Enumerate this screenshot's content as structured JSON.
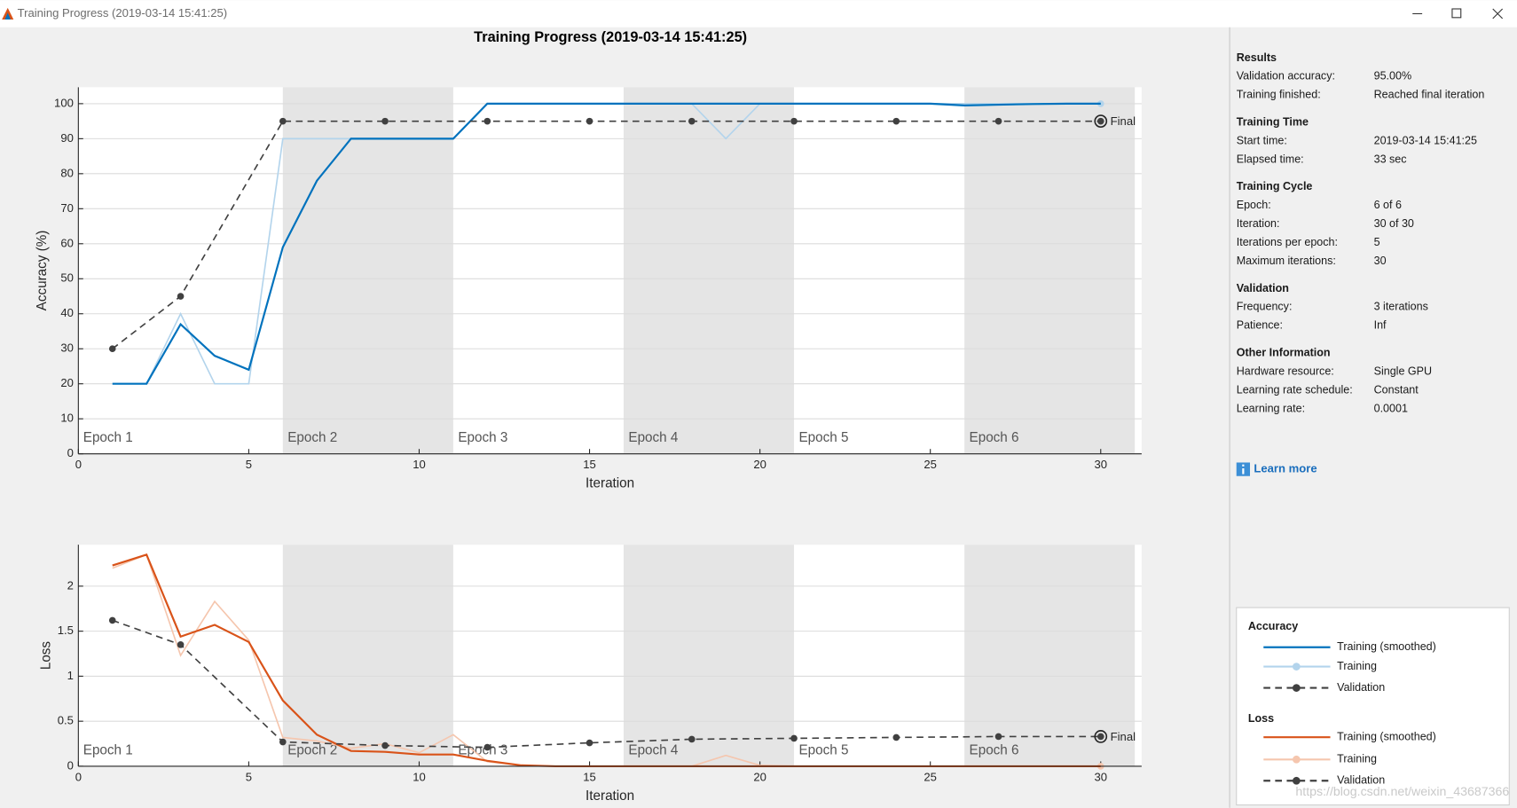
{
  "window": {
    "title": "Training Progress (2019-03-14 15:41:25)"
  },
  "heading": "Training Progress (2019-03-14 15:41:25)",
  "chart_data": [
    {
      "type": "line",
      "legend_title": "Accuracy",
      "ylabel": "Accuracy (%)",
      "xlabel": "Iteration",
      "xlim": [
        0,
        31.2
      ],
      "ylim": [
        0,
        104.7
      ],
      "xticks": [
        0,
        5,
        10,
        15,
        20,
        25,
        30
      ],
      "yticks": [
        0,
        10,
        20,
        30,
        40,
        50,
        60,
        70,
        80,
        90,
        100
      ],
      "grid": true,
      "final_label": "Final",
      "epochs": [
        {
          "label": "Epoch 1",
          "start": 0,
          "end": 6
        },
        {
          "label": "Epoch 2",
          "start": 6,
          "end": 11
        },
        {
          "label": "Epoch 3",
          "start": 11,
          "end": 16
        },
        {
          "label": "Epoch 4",
          "start": 16,
          "end": 21
        },
        {
          "label": "Epoch 5",
          "start": 21,
          "end": 26
        },
        {
          "label": "Epoch 6",
          "start": 26,
          "end": 31
        }
      ],
      "series": [
        {
          "name": "Training (smoothed)",
          "color": "#0072bd",
          "style": "solid",
          "x": [
            1,
            2,
            3,
            4,
            5,
            6,
            7,
            8,
            9,
            10,
            11,
            12,
            13,
            14,
            15,
            16,
            17,
            18,
            19,
            20,
            21,
            22,
            23,
            24,
            25,
            26,
            27,
            28,
            29,
            30
          ],
          "values": [
            20,
            20,
            37,
            28,
            24,
            59,
            78,
            90,
            90,
            90,
            90,
            100,
            100,
            100,
            100,
            100,
            100,
            100,
            100,
            100,
            100,
            100,
            100,
            100,
            100,
            99.5,
            99.7,
            99.9,
            100,
            100
          ]
        },
        {
          "name": "Training",
          "color": "#b3d4ec",
          "style": "faint",
          "x": [
            1,
            2,
            3,
            4,
            5,
            6,
            7,
            8,
            9,
            10,
            11,
            12,
            13,
            14,
            15,
            16,
            17,
            18,
            19,
            20,
            21,
            22,
            23,
            24,
            25,
            26,
            27,
            28,
            29,
            30
          ],
          "values": [
            20,
            20,
            40,
            20,
            20,
            90,
            90,
            90,
            90,
            90,
            90,
            100,
            100,
            100,
            100,
            100,
            100,
            100,
            90,
            100,
            100,
            100,
            100,
            100,
            100,
            100,
            100,
            100,
            100,
            100
          ]
        },
        {
          "name": "Validation",
          "color": "#404040",
          "style": "dashed",
          "x": [
            1,
            3,
            6,
            9,
            12,
            15,
            18,
            21,
            24,
            27,
            30
          ],
          "values": [
            30,
            45,
            95,
            95,
            95,
            95,
            95,
            95,
            95,
            95,
            95
          ]
        }
      ]
    },
    {
      "type": "line",
      "legend_title": "Loss",
      "ylabel": "Loss",
      "xlabel": "Iteration",
      "xlim": [
        0,
        31.2
      ],
      "ylim": [
        0,
        2.46
      ],
      "xticks": [
        0,
        5,
        10,
        15,
        20,
        25,
        30
      ],
      "yticks": [
        0,
        0.5,
        1,
        1.5,
        2
      ],
      "grid": true,
      "final_label": "Final",
      "epochs": [
        {
          "label": "Epoch 1",
          "start": 0,
          "end": 6
        },
        {
          "label": "Epoch 2",
          "start": 6,
          "end": 11
        },
        {
          "label": "Epoch 3",
          "start": 11,
          "end": 16
        },
        {
          "label": "Epoch 4",
          "start": 16,
          "end": 21
        },
        {
          "label": "Epoch 5",
          "start": 21,
          "end": 26
        },
        {
          "label": "Epoch 6",
          "start": 26,
          "end": 31
        }
      ],
      "series": [
        {
          "name": "Training (smoothed)",
          "color": "#d95319",
          "style": "solid",
          "x": [
            1,
            2,
            3,
            4,
            5,
            6,
            7,
            8,
            9,
            10,
            11,
            12,
            13,
            14,
            15,
            16,
            17,
            18,
            19,
            20,
            21,
            22,
            23,
            24,
            25,
            26,
            27,
            28,
            29,
            30
          ],
          "values": [
            2.23,
            2.35,
            1.44,
            1.57,
            1.38,
            0.73,
            0.35,
            0.17,
            0.16,
            0.13,
            0.13,
            0.06,
            0.01,
            0,
            0,
            0,
            0,
            0,
            0,
            0,
            0,
            0,
            0,
            0,
            0,
            0,
            0,
            0,
            0,
            0
          ]
        },
        {
          "name": "Training",
          "color": "#f5c6ae",
          "style": "faint",
          "x": [
            1,
            2,
            3,
            4,
            5,
            6,
            7,
            8,
            9,
            10,
            11,
            12,
            13,
            14,
            15,
            16,
            17,
            18,
            19,
            20,
            21,
            22,
            23,
            24,
            25,
            26,
            27,
            28,
            29,
            30
          ],
          "values": [
            2.2,
            2.35,
            1.23,
            1.83,
            1.4,
            0.32,
            0.28,
            0.2,
            0.25,
            0.15,
            0.35,
            0.05,
            0.01,
            0,
            0,
            0,
            0,
            0,
            0.12,
            0.01,
            0,
            0,
            0,
            0,
            0,
            0,
            0,
            0,
            0,
            0
          ]
        },
        {
          "name": "Validation",
          "color": "#404040",
          "style": "dashed",
          "x": [
            1,
            3,
            6,
            9,
            12,
            15,
            18,
            21,
            24,
            27,
            30
          ],
          "values": [
            1.62,
            1.35,
            0.27,
            0.23,
            0.21,
            0.26,
            0.3,
            0.31,
            0.32,
            0.33,
            0.33
          ]
        }
      ]
    }
  ],
  "panel": {
    "sections": [
      {
        "title": "Results",
        "rows": [
          [
            "Validation accuracy:",
            "95.00%"
          ],
          [
            "Training finished:",
            "Reached final iteration"
          ]
        ]
      },
      {
        "title": "Training Time",
        "rows": [
          [
            "Start time:",
            "2019-03-14 15:41:25"
          ],
          [
            "Elapsed time:",
            "33 sec"
          ]
        ]
      },
      {
        "title": "Training Cycle",
        "rows": [
          [
            "Epoch:",
            "6 of 6"
          ],
          [
            "Iteration:",
            "30 of 30"
          ],
          [
            "Iterations per epoch:",
            "5"
          ],
          [
            "Maximum iterations:",
            "30"
          ]
        ]
      },
      {
        "title": "Validation",
        "rows": [
          [
            "Frequency:",
            "3 iterations"
          ],
          [
            "Patience:",
            "Inf"
          ]
        ]
      },
      {
        "title": "Other Information",
        "rows": [
          [
            "Hardware resource:",
            "Single GPU"
          ],
          [
            "Learning rate schedule:",
            "Constant"
          ],
          [
            "Learning rate:",
            "0.0001"
          ]
        ]
      }
    ],
    "link": "Learn more"
  },
  "watermark": "https://blog.csdn.net/weixin_43687366"
}
